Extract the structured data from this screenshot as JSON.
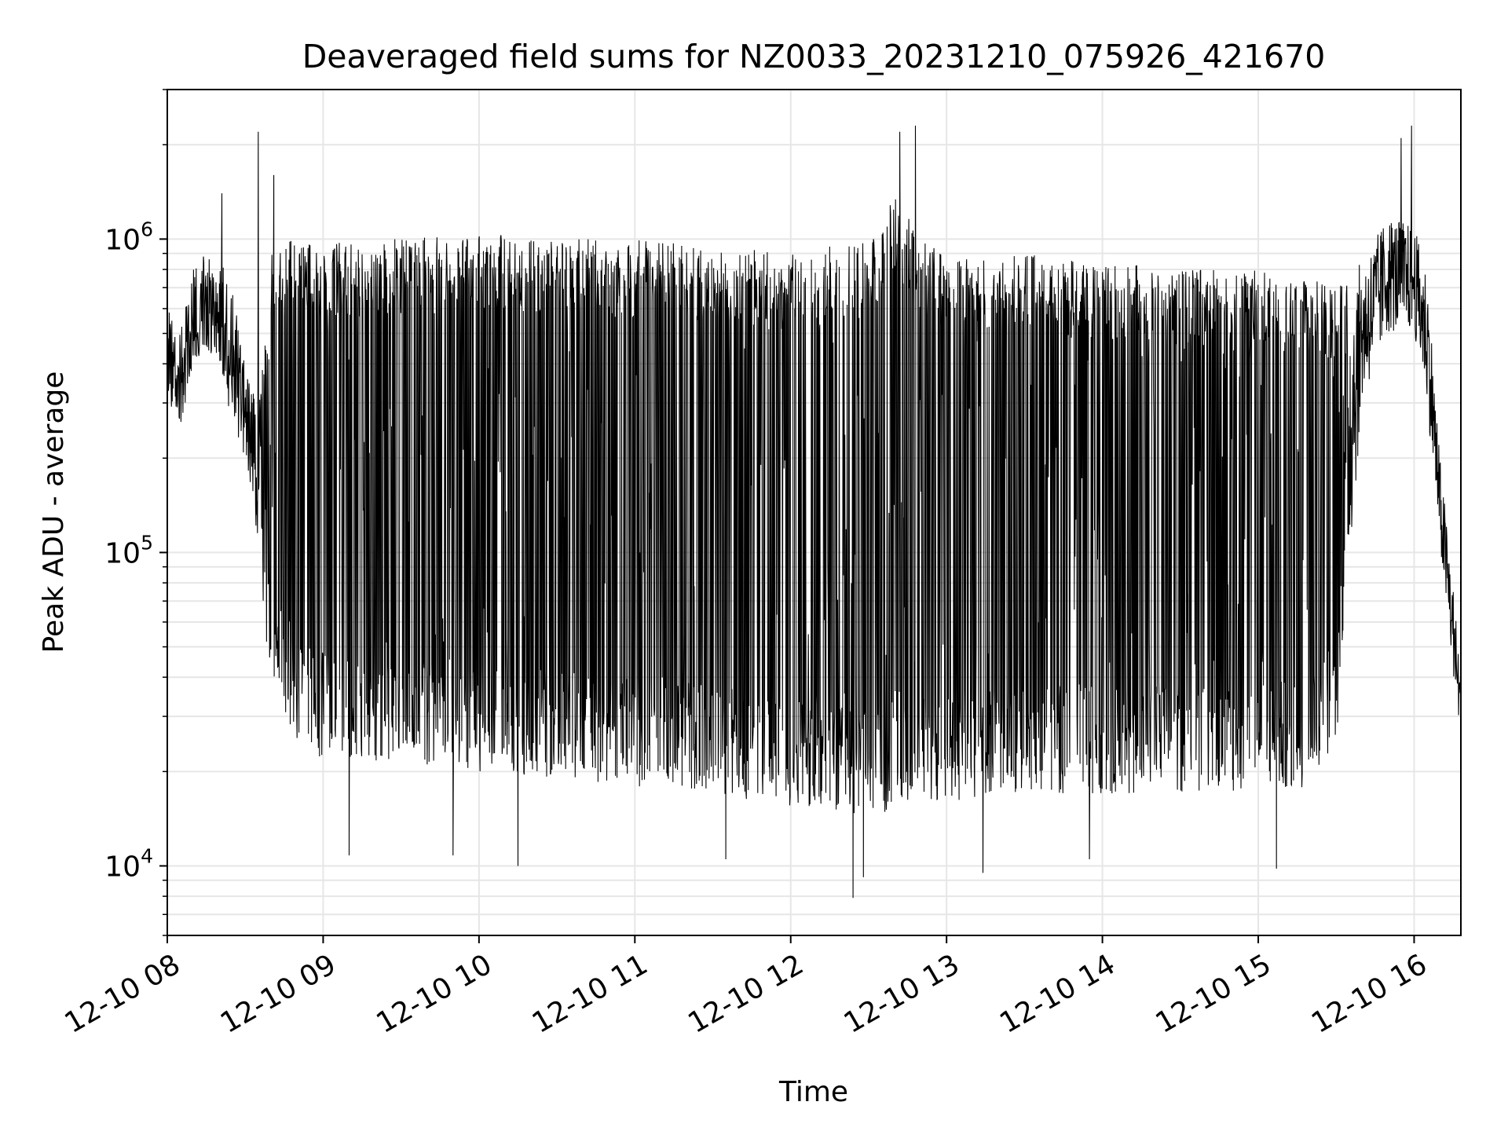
{
  "chart_data": {
    "type": "line",
    "title": "Deaveraged field sums for NZ0033_20231210_075926_421670",
    "xlabel": "Time",
    "ylabel": "Peak ADU - average",
    "yscale": "log",
    "xlim": [
      "2023-12-10T08:00",
      "2023-12-10T16:18"
    ],
    "ylim": [
      6000,
      3000000
    ],
    "grid": true,
    "line_color": "#000000",
    "x_ticks": [
      {
        "value": "2023-12-10T08:00",
        "label": "12-10 08"
      },
      {
        "value": "2023-12-10T09:00",
        "label": "12-10 09"
      },
      {
        "value": "2023-12-10T10:00",
        "label": "12-10 10"
      },
      {
        "value": "2023-12-10T11:00",
        "label": "12-10 11"
      },
      {
        "value": "2023-12-10T12:00",
        "label": "12-10 12"
      },
      {
        "value": "2023-12-10T13:00",
        "label": "12-10 13"
      },
      {
        "value": "2023-12-10T14:00",
        "label": "12-10 14"
      },
      {
        "value": "2023-12-10T15:00",
        "label": "12-10 15"
      },
      {
        "value": "2023-12-10T16:00",
        "label": "12-10 16"
      }
    ],
    "y_ticks": [
      {
        "value": 10000,
        "base": "10",
        "exp": "4"
      },
      {
        "value": 100000,
        "base": "10",
        "exp": "5"
      },
      {
        "value": 1000000,
        "base": "10",
        "exp": "6"
      }
    ],
    "series": [
      {
        "envelope": {
          "x": [
            "2023-12-10T08:00",
            "2023-12-10T08:05",
            "2023-12-10T08:10",
            "2023-12-10T08:15",
            "2023-12-10T08:20",
            "2023-12-10T08:25",
            "2023-12-10T08:30",
            "2023-12-10T08:35",
            "2023-12-10T08:40",
            "2023-12-10T08:45",
            "2023-12-10T08:50",
            "2023-12-10T08:55",
            "2023-12-10T09:00",
            "2023-12-10T09:30",
            "2023-12-10T10:00",
            "2023-12-10T10:30",
            "2023-12-10T11:00",
            "2023-12-10T11:30",
            "2023-12-10T12:00",
            "2023-12-10T12:30",
            "2023-12-10T12:40",
            "2023-12-10T12:50",
            "2023-12-10T13:00",
            "2023-12-10T13:30",
            "2023-12-10T14:00",
            "2023-12-10T14:30",
            "2023-12-10T15:00",
            "2023-12-10T15:20",
            "2023-12-10T15:30",
            "2023-12-10T15:40",
            "2023-12-10T15:50",
            "2023-12-10T16:00",
            "2023-12-10T16:05",
            "2023-12-10T16:10",
            "2023-12-10T16:15",
            "2023-12-10T16:18"
          ],
          "high": [
            600000,
            500000,
            800000,
            1000000,
            900000,
            700000,
            400000,
            300000,
            1000000,
            1000000,
            1000000,
            1000000,
            1000000,
            1000000,
            1050000,
            1000000,
            1000000,
            950000,
            900000,
            1000000,
            1400000,
            1000000,
            900000,
            900000,
            850000,
            800000,
            800000,
            750000,
            700000,
            850000,
            1200000,
            1100000,
            800000,
            200000,
            80000,
            40000
          ],
          "low": [
            300000,
            250000,
            400000,
            450000,
            400000,
            250000,
            200000,
            100000,
            35000,
            30000,
            25000,
            22000,
            22000,
            21000,
            20000,
            19000,
            18000,
            17000,
            15000,
            14000,
            15000,
            16000,
            16000,
            17000,
            17000,
            17000,
            17000,
            18000,
            25000,
            300000,
            500000,
            500000,
            300000,
            100000,
            40000,
            25000
          ]
        },
        "spikes_high": [
          {
            "x": "2023-12-10T08:21",
            "y": 1400000
          },
          {
            "x": "2023-12-10T08:35",
            "y": 2200000
          },
          {
            "x": "2023-12-10T08:41",
            "y": 1600000
          },
          {
            "x": "2023-12-10T12:42",
            "y": 2200000
          },
          {
            "x": "2023-12-10T12:48",
            "y": 2300000
          },
          {
            "x": "2023-12-10T15:55",
            "y": 2100000
          },
          {
            "x": "2023-12-10T15:59",
            "y": 2300000
          }
        ],
        "spikes_low": [
          {
            "x": "2023-12-10T08:37",
            "y": 125000
          },
          {
            "x": "2023-12-10T09:10",
            "y": 10800
          },
          {
            "x": "2023-12-10T09:50",
            "y": 10800
          },
          {
            "x": "2023-12-10T10:15",
            "y": 10000
          },
          {
            "x": "2023-12-10T11:35",
            "y": 10500
          },
          {
            "x": "2023-12-10T12:24",
            "y": 7900
          },
          {
            "x": "2023-12-10T12:28",
            "y": 9200
          },
          {
            "x": "2023-12-10T13:14",
            "y": 9500
          },
          {
            "x": "2023-12-10T13:55",
            "y": 10500
          },
          {
            "x": "2023-12-10T15:07",
            "y": 9800
          }
        ]
      }
    ]
  }
}
